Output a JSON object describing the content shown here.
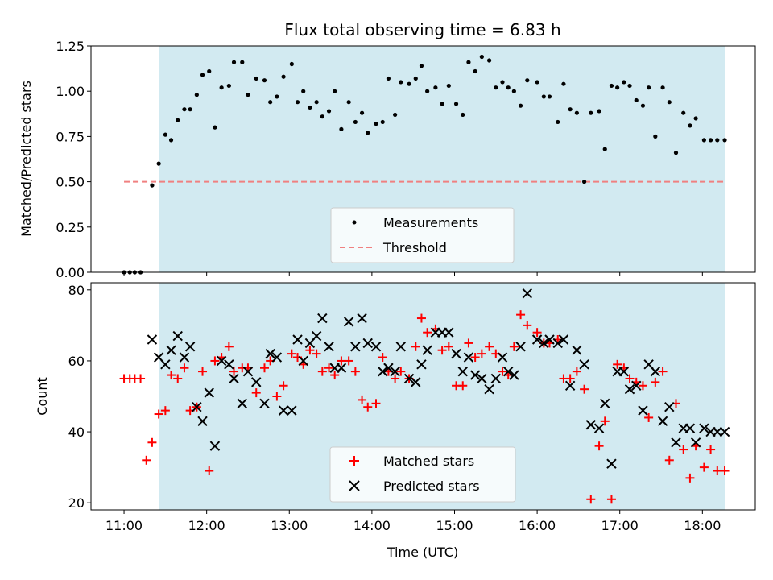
{
  "title": "Flux total observing time = 6.83 h",
  "colors": {
    "shade": "#add8e6",
    "threshold": "#f08080",
    "matched": "#ff0000",
    "predicted": "#000000",
    "measurement": "#000000"
  },
  "chart_data": [
    {
      "type": "scatter",
      "ylabel": "Matched/Predicted stars",
      "xlim": [
        10.6,
        18.64
      ],
      "ylim": [
        0,
        1.25
      ],
      "yticks": [
        "0.00",
        "0.25",
        "0.50",
        "0.75",
        "1.00",
        "1.25"
      ],
      "shaded_span": [
        11.42,
        18.27
      ],
      "threshold": {
        "value": 0.5,
        "x": [
          11.0,
          18.27
        ]
      },
      "legend": {
        "position": "lower-center",
        "entries": [
          "Measurements",
          "Threshold"
        ]
      },
      "series": [
        {
          "name": "Measurements",
          "x": [
            11.0,
            11.07,
            11.13,
            11.2,
            11.34,
            11.42,
            11.5,
            11.57,
            11.65,
            11.73,
            11.8,
            11.88,
            11.95,
            12.03,
            12.1,
            12.18,
            12.27,
            12.33,
            12.43,
            12.5,
            12.6,
            12.7,
            12.77,
            12.85,
            12.93,
            13.03,
            13.1,
            13.17,
            13.25,
            13.33,
            13.4,
            13.48,
            13.55,
            13.63,
            13.72,
            13.8,
            13.88,
            13.95,
            14.05,
            14.13,
            14.2,
            14.28,
            14.35,
            14.45,
            14.53,
            14.6,
            14.67,
            14.77,
            14.85,
            14.93,
            15.02,
            15.1,
            15.17,
            15.25,
            15.33,
            15.42,
            15.5,
            15.58,
            15.65,
            15.72,
            15.8,
            15.88,
            16.0,
            16.08,
            16.15,
            16.25,
            16.32,
            16.4,
            16.48,
            16.57,
            16.65,
            16.75,
            16.82,
            16.9,
            16.97,
            17.05,
            17.12,
            17.2,
            17.28,
            17.35,
            17.43,
            17.52,
            17.6,
            17.68,
            17.77,
            17.85,
            17.92,
            18.02,
            18.1,
            18.18,
            18.27
          ],
          "y": [
            0.0,
            0.0,
            0.0,
            0.0,
            0.48,
            0.6,
            0.76,
            0.73,
            0.84,
            0.9,
            0.9,
            0.98,
            1.09,
            1.11,
            0.8,
            1.02,
            1.03,
            1.16,
            1.16,
            0.98,
            1.07,
            1.06,
            0.94,
            0.97,
            1.08,
            1.15,
            0.94,
            1.0,
            0.91,
            0.94,
            0.86,
            0.89,
            1.0,
            0.79,
            0.94,
            0.83,
            0.88,
            0.77,
            0.82,
            0.83,
            1.07,
            0.87,
            1.05,
            1.04,
            1.07,
            1.14,
            1.0,
            1.02,
            0.93,
            1.03,
            0.93,
            0.87,
            1.16,
            1.11,
            1.19,
            1.17,
            1.02,
            1.05,
            1.02,
            1.0,
            0.92,
            1.06,
            1.05,
            0.97,
            0.97,
            0.83,
            1.04,
            0.9,
            0.88,
            0.5,
            0.88,
            0.89,
            0.68,
            1.03,
            1.02,
            1.05,
            1.03,
            0.95,
            0.92,
            1.02,
            0.75,
            1.02,
            0.94,
            0.66,
            0.88,
            0.81,
            0.85,
            0.73,
            0.73,
            0.73,
            0.73
          ]
        }
      ]
    },
    {
      "type": "scatter",
      "xlabel": "Time (UTC)",
      "ylabel": "Count",
      "xlim": [
        10.6,
        18.64
      ],
      "ylim": [
        18,
        82
      ],
      "xticks": [
        "11:00",
        "12:00",
        "13:00",
        "14:00",
        "15:00",
        "16:00",
        "17:00",
        "18:00"
      ],
      "yticks": [
        "20",
        "40",
        "60",
        "80"
      ],
      "shaded_span": [
        11.42,
        18.27
      ],
      "legend": {
        "position": "lower-center",
        "entries": [
          "Matched stars",
          "Predicted stars"
        ]
      },
      "series": [
        {
          "name": "Matched stars",
          "marker": "plus",
          "x": [
            11.0,
            11.07,
            11.13,
            11.2,
            11.27,
            11.34,
            11.42,
            11.5,
            11.57,
            11.65,
            11.73,
            11.8,
            11.88,
            11.95,
            12.03,
            12.1,
            12.18,
            12.27,
            12.33,
            12.43,
            12.5,
            12.6,
            12.7,
            12.77,
            12.85,
            12.93,
            13.03,
            13.1,
            13.17,
            13.25,
            13.33,
            13.4,
            13.48,
            13.55,
            13.63,
            13.72,
            13.8,
            13.88,
            13.95,
            14.05,
            14.13,
            14.2,
            14.28,
            14.35,
            14.45,
            14.53,
            14.6,
            14.67,
            14.77,
            14.85,
            14.93,
            15.02,
            15.1,
            15.17,
            15.25,
            15.33,
            15.42,
            15.5,
            15.58,
            15.65,
            15.72,
            15.8,
            15.88,
            16.0,
            16.08,
            16.15,
            16.25,
            16.32,
            16.4,
            16.48,
            16.57,
            16.65,
            16.75,
            16.82,
            16.9,
            16.97,
            17.05,
            17.12,
            17.2,
            17.28,
            17.35,
            17.43,
            17.52,
            17.6,
            17.68,
            17.77,
            17.85,
            17.92,
            18.02,
            18.1,
            18.18,
            18.27
          ],
          "y": [
            55,
            55,
            55,
            55,
            32,
            37,
            45,
            46,
            56,
            55,
            58,
            46,
            47,
            57,
            29,
            60,
            61,
            64,
            57,
            58,
            58,
            51,
            58,
            60,
            50,
            53,
            62,
            61,
            59,
            63,
            62,
            57,
            58,
            56,
            60,
            60,
            57,
            49,
            47,
            48,
            61,
            57,
            55,
            57,
            55,
            64,
            72,
            68,
            69,
            63,
            64,
            53,
            53,
            65,
            61,
            62,
            64,
            62,
            57,
            56,
            64,
            73,
            70,
            68,
            65,
            65,
            66,
            55,
            55,
            57,
            52,
            21,
            36,
            43,
            21,
            59,
            58,
            55,
            54,
            53,
            44,
            54,
            57,
            32,
            48,
            35,
            27,
            36,
            30,
            35,
            29,
            29
          ]
        },
        {
          "name": "Predicted stars",
          "marker": "x",
          "x": [
            11.34,
            11.42,
            11.5,
            11.57,
            11.65,
            11.73,
            11.8,
            11.88,
            11.95,
            12.03,
            12.1,
            12.18,
            12.27,
            12.33,
            12.43,
            12.5,
            12.6,
            12.7,
            12.77,
            12.85,
            12.93,
            13.03,
            13.1,
            13.17,
            13.25,
            13.33,
            13.4,
            13.48,
            13.55,
            13.63,
            13.72,
            13.8,
            13.88,
            13.95,
            14.05,
            14.13,
            14.2,
            14.28,
            14.35,
            14.45,
            14.53,
            14.6,
            14.67,
            14.77,
            14.85,
            14.93,
            15.02,
            15.1,
            15.17,
            15.25,
            15.33,
            15.42,
            15.5,
            15.58,
            15.65,
            15.72,
            15.8,
            15.88,
            16.0,
            16.08,
            16.15,
            16.25,
            16.32,
            16.4,
            16.48,
            16.57,
            16.65,
            16.75,
            16.82,
            16.9,
            16.97,
            17.05,
            17.12,
            17.2,
            17.28,
            17.35,
            17.43,
            17.52,
            17.6,
            17.68,
            17.77,
            17.85,
            17.92,
            18.02,
            18.1,
            18.18,
            18.27
          ],
          "y": [
            66,
            61,
            59,
            63,
            67,
            61,
            64,
            47,
            43,
            51,
            36,
            60,
            59,
            55,
            48,
            57,
            54,
            48,
            62,
            61,
            46,
            46,
            66,
            60,
            65,
            67,
            72,
            64,
            58,
            58,
            71,
            64,
            72,
            65,
            64,
            57,
            58,
            57,
            64,
            55,
            54,
            59,
            63,
            68,
            68,
            68,
            62,
            57,
            61,
            56,
            55,
            52,
            55,
            61,
            57,
            56,
            64,
            79,
            66,
            65,
            66,
            65,
            66,
            53,
            63,
            59,
            42,
            41,
            48,
            31,
            57,
            57,
            52,
            53,
            46,
            59,
            57,
            43,
            47,
            37,
            41,
            41,
            37,
            41,
            40,
            40,
            40
          ]
        }
      ]
    }
  ]
}
